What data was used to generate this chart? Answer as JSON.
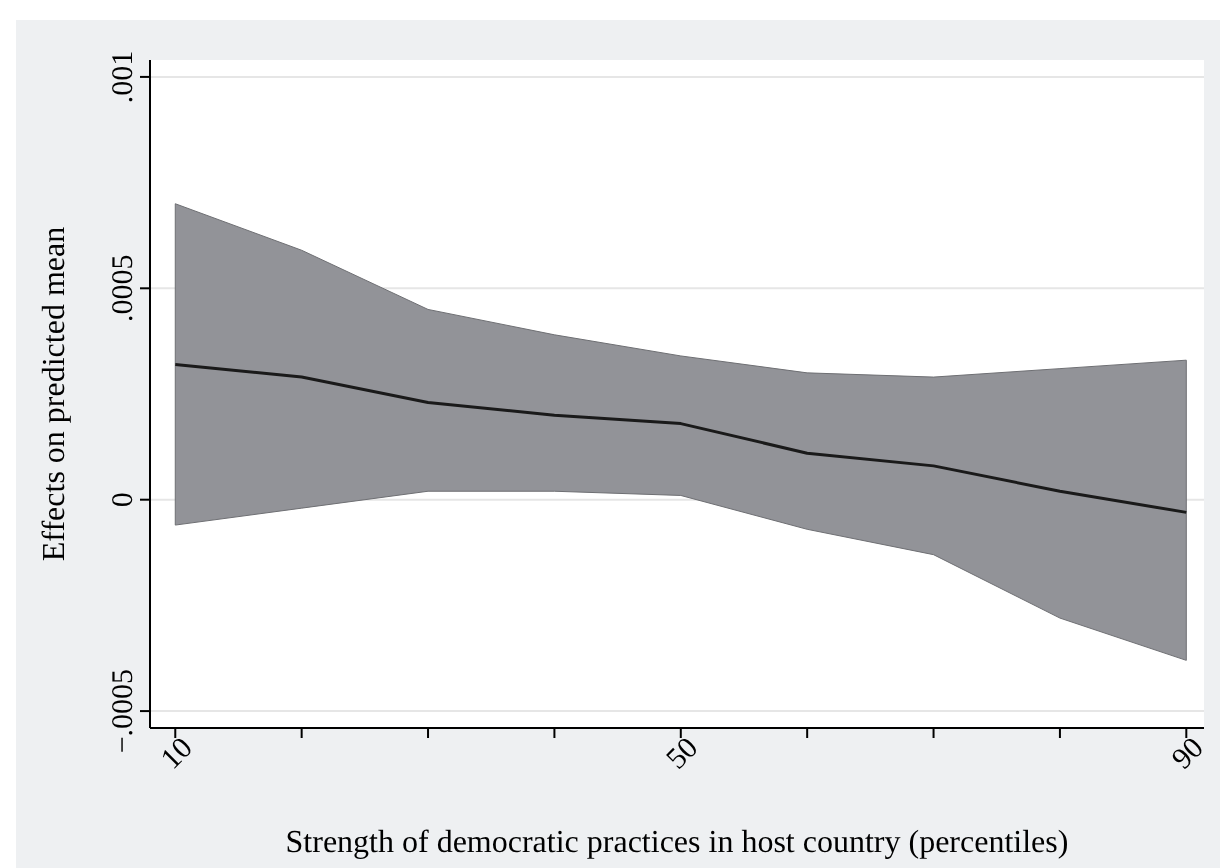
{
  "chart_data": {
    "type": "line",
    "xlabel": "Strength of democratic practices in host country (percentiles)",
    "ylabel": "Effects on predicted mean",
    "series": [
      {
        "color": "#1a1a1a",
        "x": [
          10,
          20,
          30,
          40,
          50,
          60,
          70,
          80,
          90
        ],
        "values": [
          0.00032,
          0.00029,
          0.00023,
          0.0002,
          0.00018,
          0.00011,
          8e-05,
          2e-05,
          -3e-05
        ],
        "lower": [
          -6e-05,
          -2e-05,
          2e-05,
          2e-05,
          1e-05,
          -7e-05,
          -0.00013,
          -0.00028,
          -0.00038
        ],
        "upper": [
          0.0007,
          0.00059,
          0.00045,
          0.00039,
          0.00034,
          0.0003,
          0.00029,
          0.00031,
          0.00033
        ]
      }
    ],
    "xlim": [
      8,
      91.4
    ],
    "ylim": [
      -0.00054,
      0.00104
    ],
    "xticks": [
      10,
      {
        "value": 20,
        "label": null
      },
      {
        "value": 30,
        "label": null
      },
      {
        "value": 40,
        "label": null
      },
      50,
      {
        "value": 60,
        "label": null
      },
      {
        "value": 70,
        "label": null
      },
      {
        "value": 80,
        "label": null
      },
      90
    ],
    "yticks": [
      {
        "value": -0.0005,
        "label": "−.0005"
      },
      0,
      {
        "value": 0.0005,
        "label": ".0005"
      },
      {
        "value": 0.001,
        "label": ".001"
      }
    ],
    "grid": "y",
    "line_style": "solid"
  }
}
